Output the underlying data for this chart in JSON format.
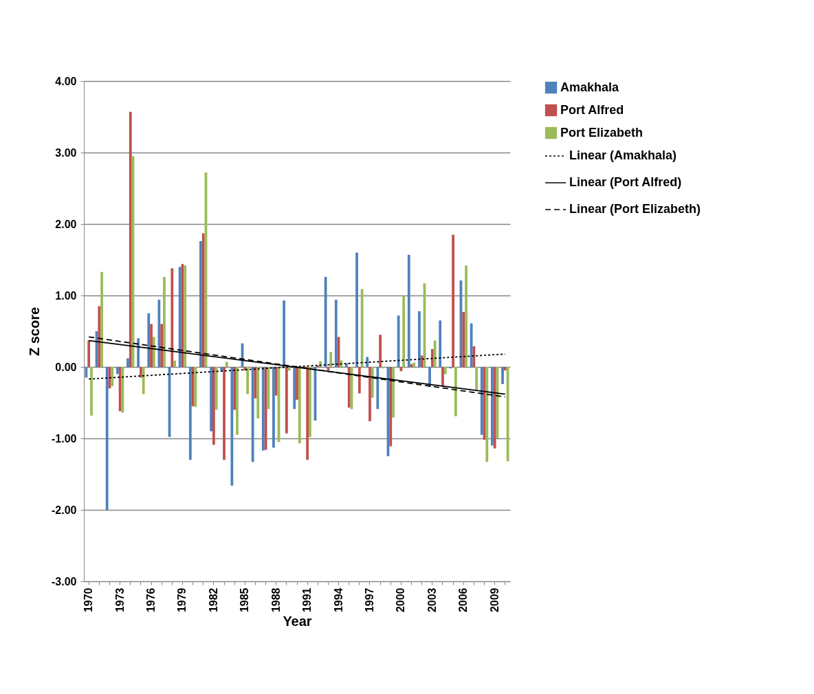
{
  "chart_data": {
    "type": "bar",
    "xlabel": "Year",
    "ylabel": "Z score",
    "categories": [
      "1970",
      null,
      null,
      "1973",
      null,
      null,
      "1976",
      null,
      null,
      "1979",
      null,
      null,
      "1982",
      null,
      null,
      "1985",
      null,
      null,
      "1988",
      null,
      null,
      "1991",
      null,
      null,
      "1994",
      null,
      null,
      "1997",
      null,
      null,
      "2000",
      null,
      null,
      "2003",
      null,
      null,
      "2006",
      null,
      null,
      "2009",
      null
    ],
    "series": [
      {
        "name": "Amakhala",
        "color": "#4f81bd",
        "values": [
          -0.15,
          0.5,
          -2.0,
          -0.1,
          0.12,
          0.4,
          0.75,
          0.94,
          -0.98,
          1.4,
          -1.3,
          1.76,
          -0.9,
          -0.05,
          -1.66,
          0.33,
          -1.33,
          -1.17,
          -1.13,
          0.93,
          -0.59,
          null,
          -0.75,
          1.26,
          0.94,
          0.05,
          1.6,
          0.14,
          -0.59,
          -1.25,
          0.72,
          1.57,
          0.78,
          -0.28,
          0.65,
          -0.02,
          1.21,
          0.61,
          -0.95,
          -1.1,
          -0.24
        ]
      },
      {
        "name": "Port Alfred",
        "color": "#c0504d",
        "values": [
          0.37,
          0.85,
          -0.3,
          -0.62,
          3.57,
          -0.15,
          0.6,
          0.6,
          1.38,
          1.44,
          -0.55,
          1.87,
          -1.09,
          -1.3,
          -0.6,
          -0.05,
          -0.44,
          -1.16,
          -0.4,
          -0.93,
          -0.46,
          -1.3,
          0.02,
          -0.05,
          0.42,
          -0.57,
          -0.37,
          -0.76,
          0.45,
          -1.11,
          -0.06,
          0.04,
          0.16,
          0.25,
          -0.28,
          1.85,
          0.77,
          0.29,
          -1.02,
          -1.14,
          -0.05
        ]
      },
      {
        "name": "Port Elizabeth",
        "color": "#9bbb59",
        "values": [
          -0.68,
          1.33,
          -0.27,
          -0.64,
          2.95,
          -0.38,
          0.42,
          1.26,
          0.09,
          1.42,
          -0.56,
          2.72,
          -0.6,
          0.07,
          -0.95,
          -0.38,
          -0.72,
          -0.59,
          -1.05,
          -0.05,
          -1.07,
          -0.98,
          0.08,
          0.21,
          0.09,
          -0.59,
          1.09,
          -0.43,
          -0.02,
          -0.71,
          0.99,
          0.06,
          1.17,
          0.37,
          -0.1,
          -0.69,
          1.42,
          -0.32,
          -1.33,
          -1.0,
          -1.32
        ]
      },
      {
        "name": "Linear (Amakhala)",
        "type": "line",
        "line_style": "dotted",
        "color": "#000000",
        "values": [
          -0.17,
          null,
          null,
          null,
          null,
          null,
          null,
          null,
          null,
          null,
          null,
          null,
          null,
          null,
          null,
          null,
          null,
          null,
          null,
          null,
          null,
          null,
          null,
          null,
          null,
          null,
          null,
          null,
          null,
          null,
          null,
          null,
          null,
          null,
          null,
          null,
          null,
          null,
          null,
          null,
          0.18
        ]
      },
      {
        "name": "Linear (Port Alfred)",
        "type": "line",
        "line_style": "solid",
        "color": "#000000",
        "values": [
          0.37,
          null,
          null,
          null,
          null,
          null,
          null,
          null,
          null,
          null,
          null,
          null,
          null,
          null,
          null,
          null,
          null,
          null,
          null,
          null,
          null,
          null,
          null,
          null,
          null,
          null,
          null,
          null,
          null,
          null,
          null,
          null,
          null,
          null,
          null,
          null,
          null,
          null,
          null,
          null,
          -0.38
        ]
      },
      {
        "name": "Linear (Port Elizabeth)",
        "type": "line",
        "line_style": "dashed",
        "color": "#000000",
        "values": [
          0.42,
          null,
          null,
          null,
          null,
          null,
          null,
          null,
          null,
          null,
          null,
          null,
          null,
          null,
          null,
          null,
          null,
          null,
          null,
          null,
          null,
          null,
          null,
          null,
          null,
          null,
          null,
          null,
          null,
          null,
          null,
          null,
          null,
          null,
          null,
          null,
          null,
          null,
          null,
          null,
          -0.42
        ]
      }
    ],
    "ylim": [
      -3,
      4
    ],
    "yticks": [
      {
        "value": -3,
        "label": "-3.00"
      },
      {
        "value": -2,
        "label": "-2.00"
      },
      {
        "value": -1,
        "label": "-1.00"
      },
      {
        "value": 0,
        "label": "0.00"
      },
      {
        "value": 1,
        "label": "1.00"
      },
      {
        "value": 2,
        "label": "2.00"
      },
      {
        "value": 3,
        "label": "3.00"
      },
      {
        "value": 4,
        "label": "4.00"
      }
    ],
    "grid": "y",
    "legend": "right"
  }
}
